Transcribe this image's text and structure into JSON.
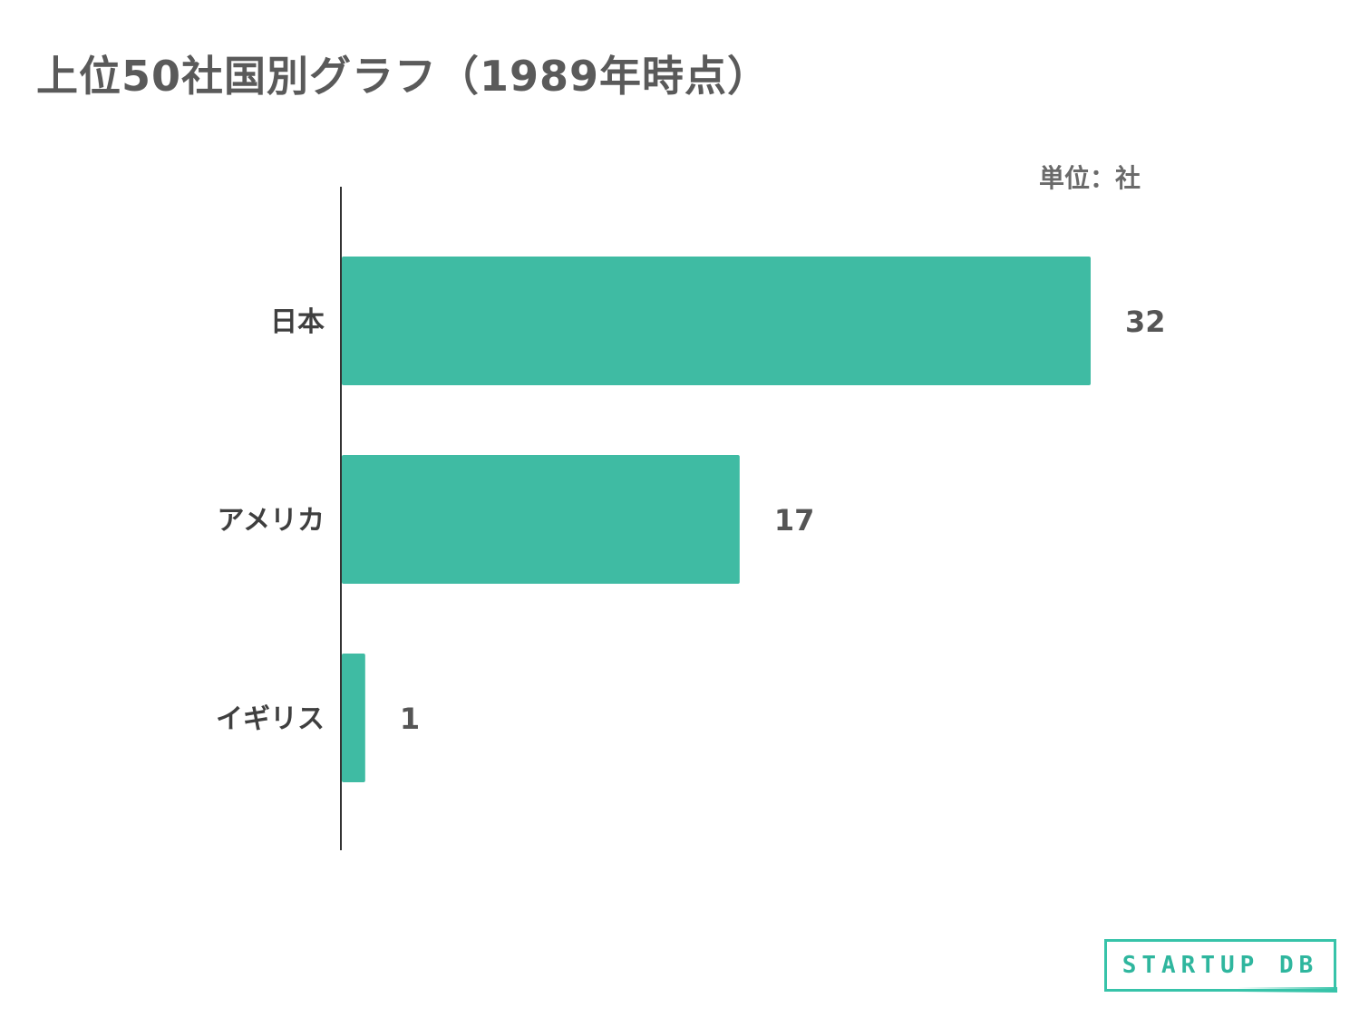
{
  "title": "上位50社国別グラフ（1989年時点）",
  "logo_text": "STARTUP DB",
  "colors": {
    "bar": "#3fbba3",
    "axis": "#333333",
    "logo": "#37c3a9"
  },
  "chart_data": {
    "type": "bar",
    "orientation": "horizontal",
    "categories": [
      "日本",
      "アメリカ",
      "イギリス"
    ],
    "values": [
      32,
      17,
      1
    ],
    "value_labels": [
      "32",
      "17",
      "1"
    ],
    "unit_label": "単位：社",
    "xlim": [
      0,
      32
    ],
    "grid": false,
    "legend": "none"
  }
}
